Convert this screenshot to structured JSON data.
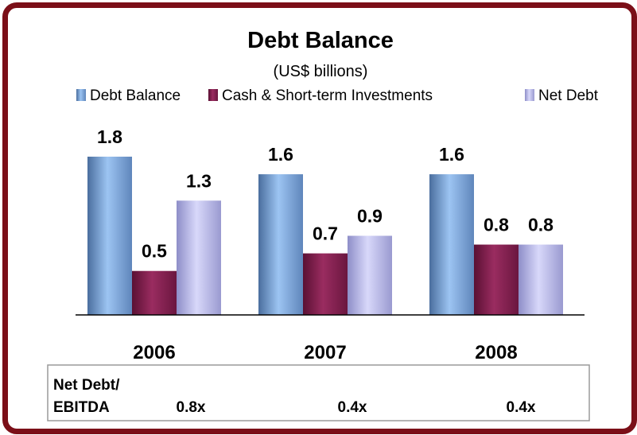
{
  "chart_data": {
    "type": "bar",
    "title": "Debt Balance",
    "subtitle": "(US$ billions)",
    "categories": [
      "2006",
      "2007",
      "2008"
    ],
    "series": [
      {
        "name": "Debt Balance",
        "values": [
          1.8,
          1.6,
          1.6
        ],
        "color": "#8ab4e8"
      },
      {
        "name": "Cash & Short-term Investments",
        "values": [
          0.5,
          0.7,
          0.8
        ],
        "color": "#8b2456"
      },
      {
        "name": "Net Debt",
        "values": [
          1.3,
          0.9,
          0.8
        ],
        "color": "#c4c4f0"
      }
    ],
    "data_labels": [
      [
        "1.8",
        "0.5",
        "1.3"
      ],
      [
        "1.6",
        "0.7",
        "0.9"
      ],
      [
        "1.6",
        "0.8",
        "0.8"
      ]
    ],
    "ylim": [
      0,
      1.8
    ],
    "grid": false,
    "legend": "top"
  },
  "table": {
    "row_label_line1": "Net Debt/",
    "row_label_line2": "EBITDA",
    "values": [
      "0.8x",
      "0.4x",
      "0.4x"
    ]
  }
}
